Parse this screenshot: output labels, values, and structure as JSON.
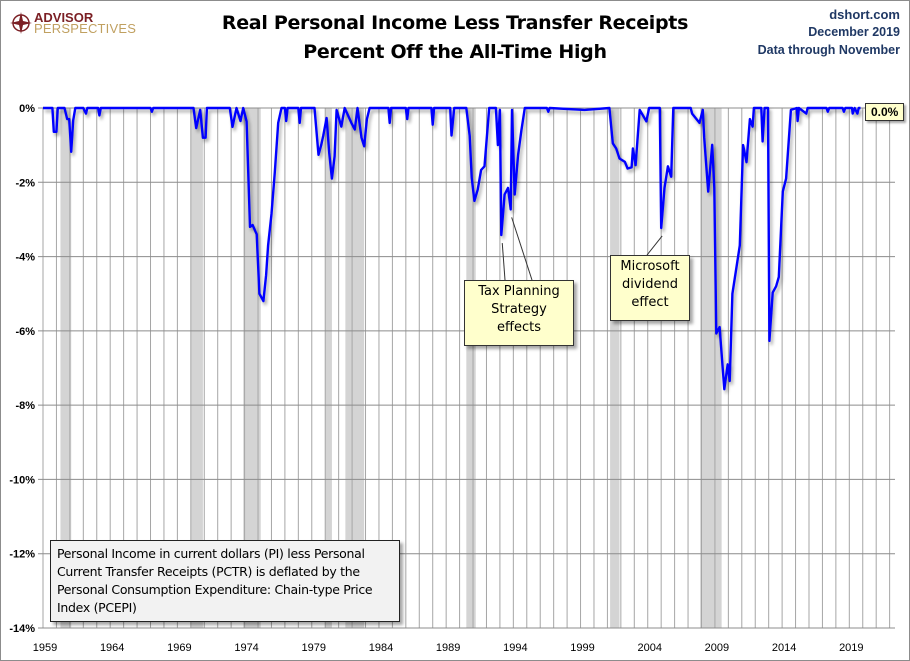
{
  "header": {
    "logo_line1": "ADVISOR",
    "logo_line2": "PERSPECTIVES",
    "title_line1": "Real Personal Income Less Transfer Receipts",
    "title_line2": "Percent Off the All-Time High",
    "site": "dshort.com",
    "date": "December 2019",
    "data_through": "Data through November"
  },
  "info_box": "Personal Income in current dollars  (PI) less Personal Current Transfer Receipts (PCTR) is deflated by the Personal Consumption Expenditure: Chain-type Price Index (PCEPI)",
  "chart_data": {
    "type": "line",
    "title": "Real Personal Income Less Transfer Receipts Percent Off the All-Time High",
    "xlabel": "",
    "ylabel": "",
    "xlim": [
      1959,
      2022.4
    ],
    "ylim": [
      -14,
      0
    ],
    "grid": true,
    "colors": {
      "line": "#0000ff",
      "recession": "#d4d4d4",
      "grid": "#a6a6a6"
    },
    "x_ticks": [
      "1959",
      "1964",
      "1969",
      "1974",
      "1979",
      "1984",
      "1989",
      "1994",
      "1999",
      "2004",
      "2009",
      "2014",
      "2019"
    ],
    "y_ticks": [
      "0%",
      "-2%",
      "-4%",
      "-6%",
      "-8%",
      "-10%",
      "-12%",
      "-14%"
    ],
    "y_tick_values": [
      0,
      -2,
      -4,
      -6,
      -8,
      -10,
      -12,
      -14
    ],
    "recessions": [
      [
        1960.3,
        1961.1
      ],
      [
        1970.0,
        1970.9
      ],
      [
        1973.9,
        1975.2
      ],
      [
        1980.0,
        1980.5
      ],
      [
        1981.5,
        1982.9
      ],
      [
        1990.5,
        1991.2
      ],
      [
        2001.2,
        2001.9
      ],
      [
        2007.9,
        2009.5
      ]
    ],
    "series": [
      {
        "x": [
          1959.0,
          1959.7,
          1959.8,
          1960.0,
          1960.1,
          1960.6,
          1960.8,
          1960.95,
          1961.1,
          1961.25,
          1961.4,
          1962.0,
          1962.2,
          1962.3,
          1963.1,
          1963.2,
          1963.3,
          1967.0,
          1967.1,
          1967.2,
          1970.2,
          1970.4,
          1970.7,
          1970.9,
          1971.1,
          1971.2,
          1972.9,
          1973.1,
          1973.4,
          1973.7,
          1973.9,
          1974.15,
          1974.4,
          1974.6,
          1974.9,
          1975.1,
          1975.4,
          1975.6,
          1975.75,
          1976.0,
          1976.25,
          1976.5,
          1976.75,
          1977.0,
          1977.1,
          1977.2,
          1978.0,
          1978.1,
          1978.2,
          1979.2,
          1979.5,
          1979.7,
          1979.85,
          1980.1,
          1980.3,
          1980.5,
          1980.7,
          1980.85,
          1981.2,
          1981.45,
          1981.95,
          1982.2,
          1982.4,
          1982.7,
          1982.9,
          1983.1,
          1983.3,
          1984.7,
          1984.8,
          1984.9,
          1986.0,
          1986.1,
          1986.2,
          1987.9,
          1988.0,
          1988.1,
          1989.3,
          1989.4,
          1989.6,
          1990.5,
          1990.75,
          1990.9,
          1991.1,
          1991.35,
          1991.6,
          1991.85,
          1992.2,
          1992.7,
          1992.85,
          1993.0,
          1993.1,
          1993.35,
          1993.6,
          1993.8,
          1993.9,
          1994.1,
          1994.35,
          1994.6,
          1994.85,
          1996.5,
          1996.6,
          1996.7,
          1999.3,
          2001.15,
          2001.4,
          2001.65,
          2001.9,
          2002.3,
          2002.5,
          2002.8,
          2002.9,
          2003.1,
          2003.4,
          2003.9,
          2004.1,
          2004.9,
          2005.0,
          2005.25,
          2005.5,
          2005.75,
          2005.9,
          2007.2,
          2007.3,
          2007.85,
          2008.1,
          2008.2,
          2008.5,
          2008.8,
          2008.95,
          2009.1,
          2009.35,
          2009.7,
          2009.95,
          2010.1,
          2010.3,
          2010.6,
          2010.85,
          2011.1,
          2011.35,
          2011.6,
          2011.8,
          2011.9,
          2012.45,
          2012.55,
          2012.7,
          2012.95,
          2013.05,
          2013.3,
          2013.55,
          2013.75,
          2014.05,
          2014.3,
          2014.65,
          2015.1,
          2015.15,
          2015.25,
          2015.8,
          2015.9,
          2017.3,
          2017.4,
          2017.5,
          2018.5,
          2018.6,
          2018.7,
          2019.2,
          2019.25,
          2019.4,
          2019.6,
          2019.7,
          2019.83
        ],
        "y": [
          0,
          0,
          -0.64,
          -0.64,
          0,
          0,
          -0.3,
          -0.3,
          -1.18,
          -0.33,
          0,
          0,
          -0.15,
          0,
          0,
          -0.2,
          0,
          0,
          -0.1,
          0,
          0,
          -0.54,
          -0.05,
          -0.8,
          -0.8,
          0,
          0,
          -0.51,
          0,
          -0.35,
          0,
          -0.36,
          -3.2,
          -3.15,
          -3.4,
          -5.0,
          -5.2,
          -4.5,
          -3.7,
          -2.85,
          -1.73,
          -0.4,
          0,
          0,
          -0.35,
          0,
          0,
          -0.4,
          0,
          0,
          -1.26,
          -1.0,
          -0.75,
          -0.27,
          -1.2,
          -1.9,
          -1.3,
          -0.05,
          -0.5,
          0,
          -0.4,
          -0.58,
          0,
          -0.8,
          -1.03,
          -0.3,
          0,
          0,
          -0.4,
          0,
          0,
          -0.3,
          0,
          0,
          -0.45,
          0,
          0,
          -0.74,
          0,
          0,
          -0.75,
          -1.87,
          -2.5,
          -2.2,
          -1.67,
          -1.57,
          0,
          0,
          -1.0,
          -0.05,
          -3.42,
          -2.33,
          -2.15,
          -2.73,
          -0.05,
          -2.33,
          -1.26,
          -0.6,
          0,
          0,
          -0.1,
          0,
          -0.05,
          0,
          -0.95,
          -1.09,
          -1.36,
          -1.45,
          -1.63,
          -1.6,
          -1.09,
          -1.54,
          -0.05,
          -0.36,
          0,
          0,
          -3.23,
          -2.15,
          -1.57,
          -1.85,
          0,
          0,
          -0.15,
          -0.4,
          -0.05,
          -0.8,
          -2.25,
          -0.99,
          -2.15,
          -6.07,
          -5.9,
          -7.57,
          -6.9,
          -7.35,
          -5.0,
          -4.3,
          -3.7,
          -1.0,
          -1.46,
          -0.3,
          -0.5,
          0,
          0,
          -0.9,
          0,
          0,
          -6.27,
          -4.97,
          -4.8,
          -4.55,
          -2.25,
          -1.9,
          -0.05,
          0,
          -0.35,
          0,
          -0.15,
          0,
          0,
          -0.1,
          0,
          0,
          -0.1,
          0,
          0,
          -0.15,
          0,
          -0.15,
          0,
          0
        ]
      }
    ],
    "annotations": [
      {
        "text": "Tax Planning Strategy effects",
        "lines": [
          "Tax Planning",
          "Strategy",
          "effects"
        ],
        "points_to": [
          [
            1993.1,
            -3.42
          ],
          [
            1993.8,
            -2.73
          ]
        ]
      },
      {
        "text": "Microsoft dividend effect",
        "lines": [
          "Microsoft",
          "dividend",
          "effect"
        ],
        "points_to": [
          [
            2005.0,
            -3.23
          ]
        ]
      }
    ],
    "end_label": "0.0%"
  }
}
